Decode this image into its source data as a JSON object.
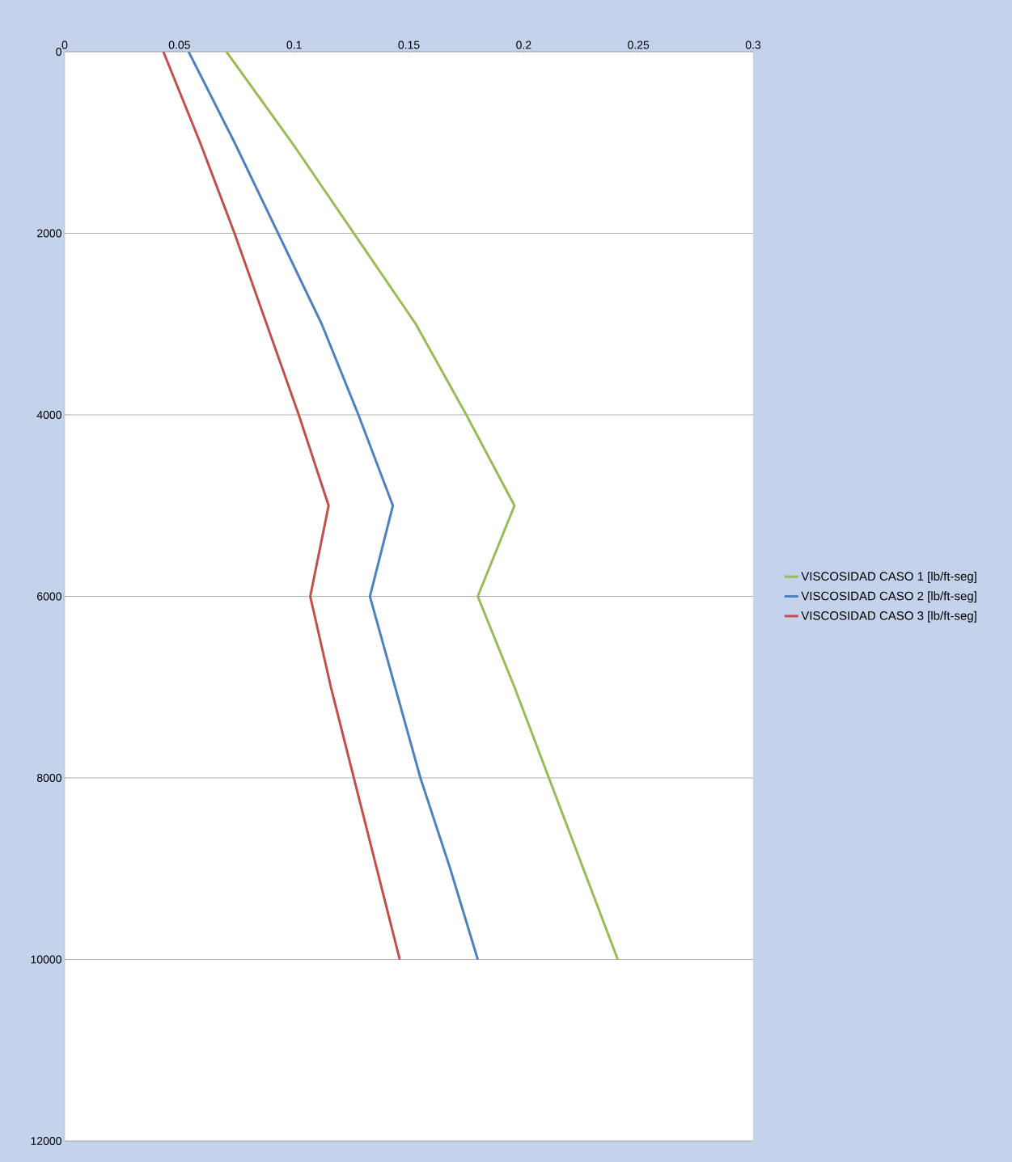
{
  "chart_data": {
    "type": "line",
    "xlim": [
      0,
      0.3
    ],
    "xticks": [
      0,
      0.05,
      0.1,
      0.15,
      0.2,
      0.25,
      0.3
    ],
    "ylim": [
      12000,
      0
    ],
    "yticks": [
      0,
      2000,
      4000,
      6000,
      8000,
      10000,
      12000
    ],
    "grid": "y",
    "legend": "right",
    "marker": "none",
    "line_style": "solid",
    "series": [
      {
        "name": "VISCOSIDAD CASO 1 [lb/ft-seg]",
        "color": "#9bbb59",
        "x": [
          0.0705,
          0.099,
          0.126,
          0.153,
          0.175,
          0.196,
          0.18,
          0.196,
          0.211,
          0.226,
          0.241
        ],
        "values": [
          0,
          1000,
          2000,
          3000,
          4000,
          5000,
          6000,
          7000,
          8000,
          9000,
          10000
        ]
      },
      {
        "name": "VISCOSIDAD CASO 2 [lb/ft-seg]",
        "color": "#4f81bd",
        "x": [
          0.054,
          0.074,
          0.093,
          0.112,
          0.128,
          0.143,
          0.133,
          0.144,
          0.155,
          0.168,
          0.18
        ],
        "values": [
          0,
          1000,
          2000,
          3000,
          4000,
          5000,
          6000,
          7000,
          8000,
          9000,
          10000
        ]
      },
      {
        "name": "VISCOSIDAD CASO 3 [lb/ft-seg]",
        "color": "#c0504d",
        "x": [
          0.043,
          0.059,
          0.074,
          0.088,
          0.102,
          0.115,
          0.107,
          0.116,
          0.126,
          0.136,
          0.146
        ],
        "values": [
          0,
          1000,
          2000,
          3000,
          4000,
          5000,
          6000,
          7000,
          8000,
          9000,
          10000
        ]
      }
    ]
  }
}
